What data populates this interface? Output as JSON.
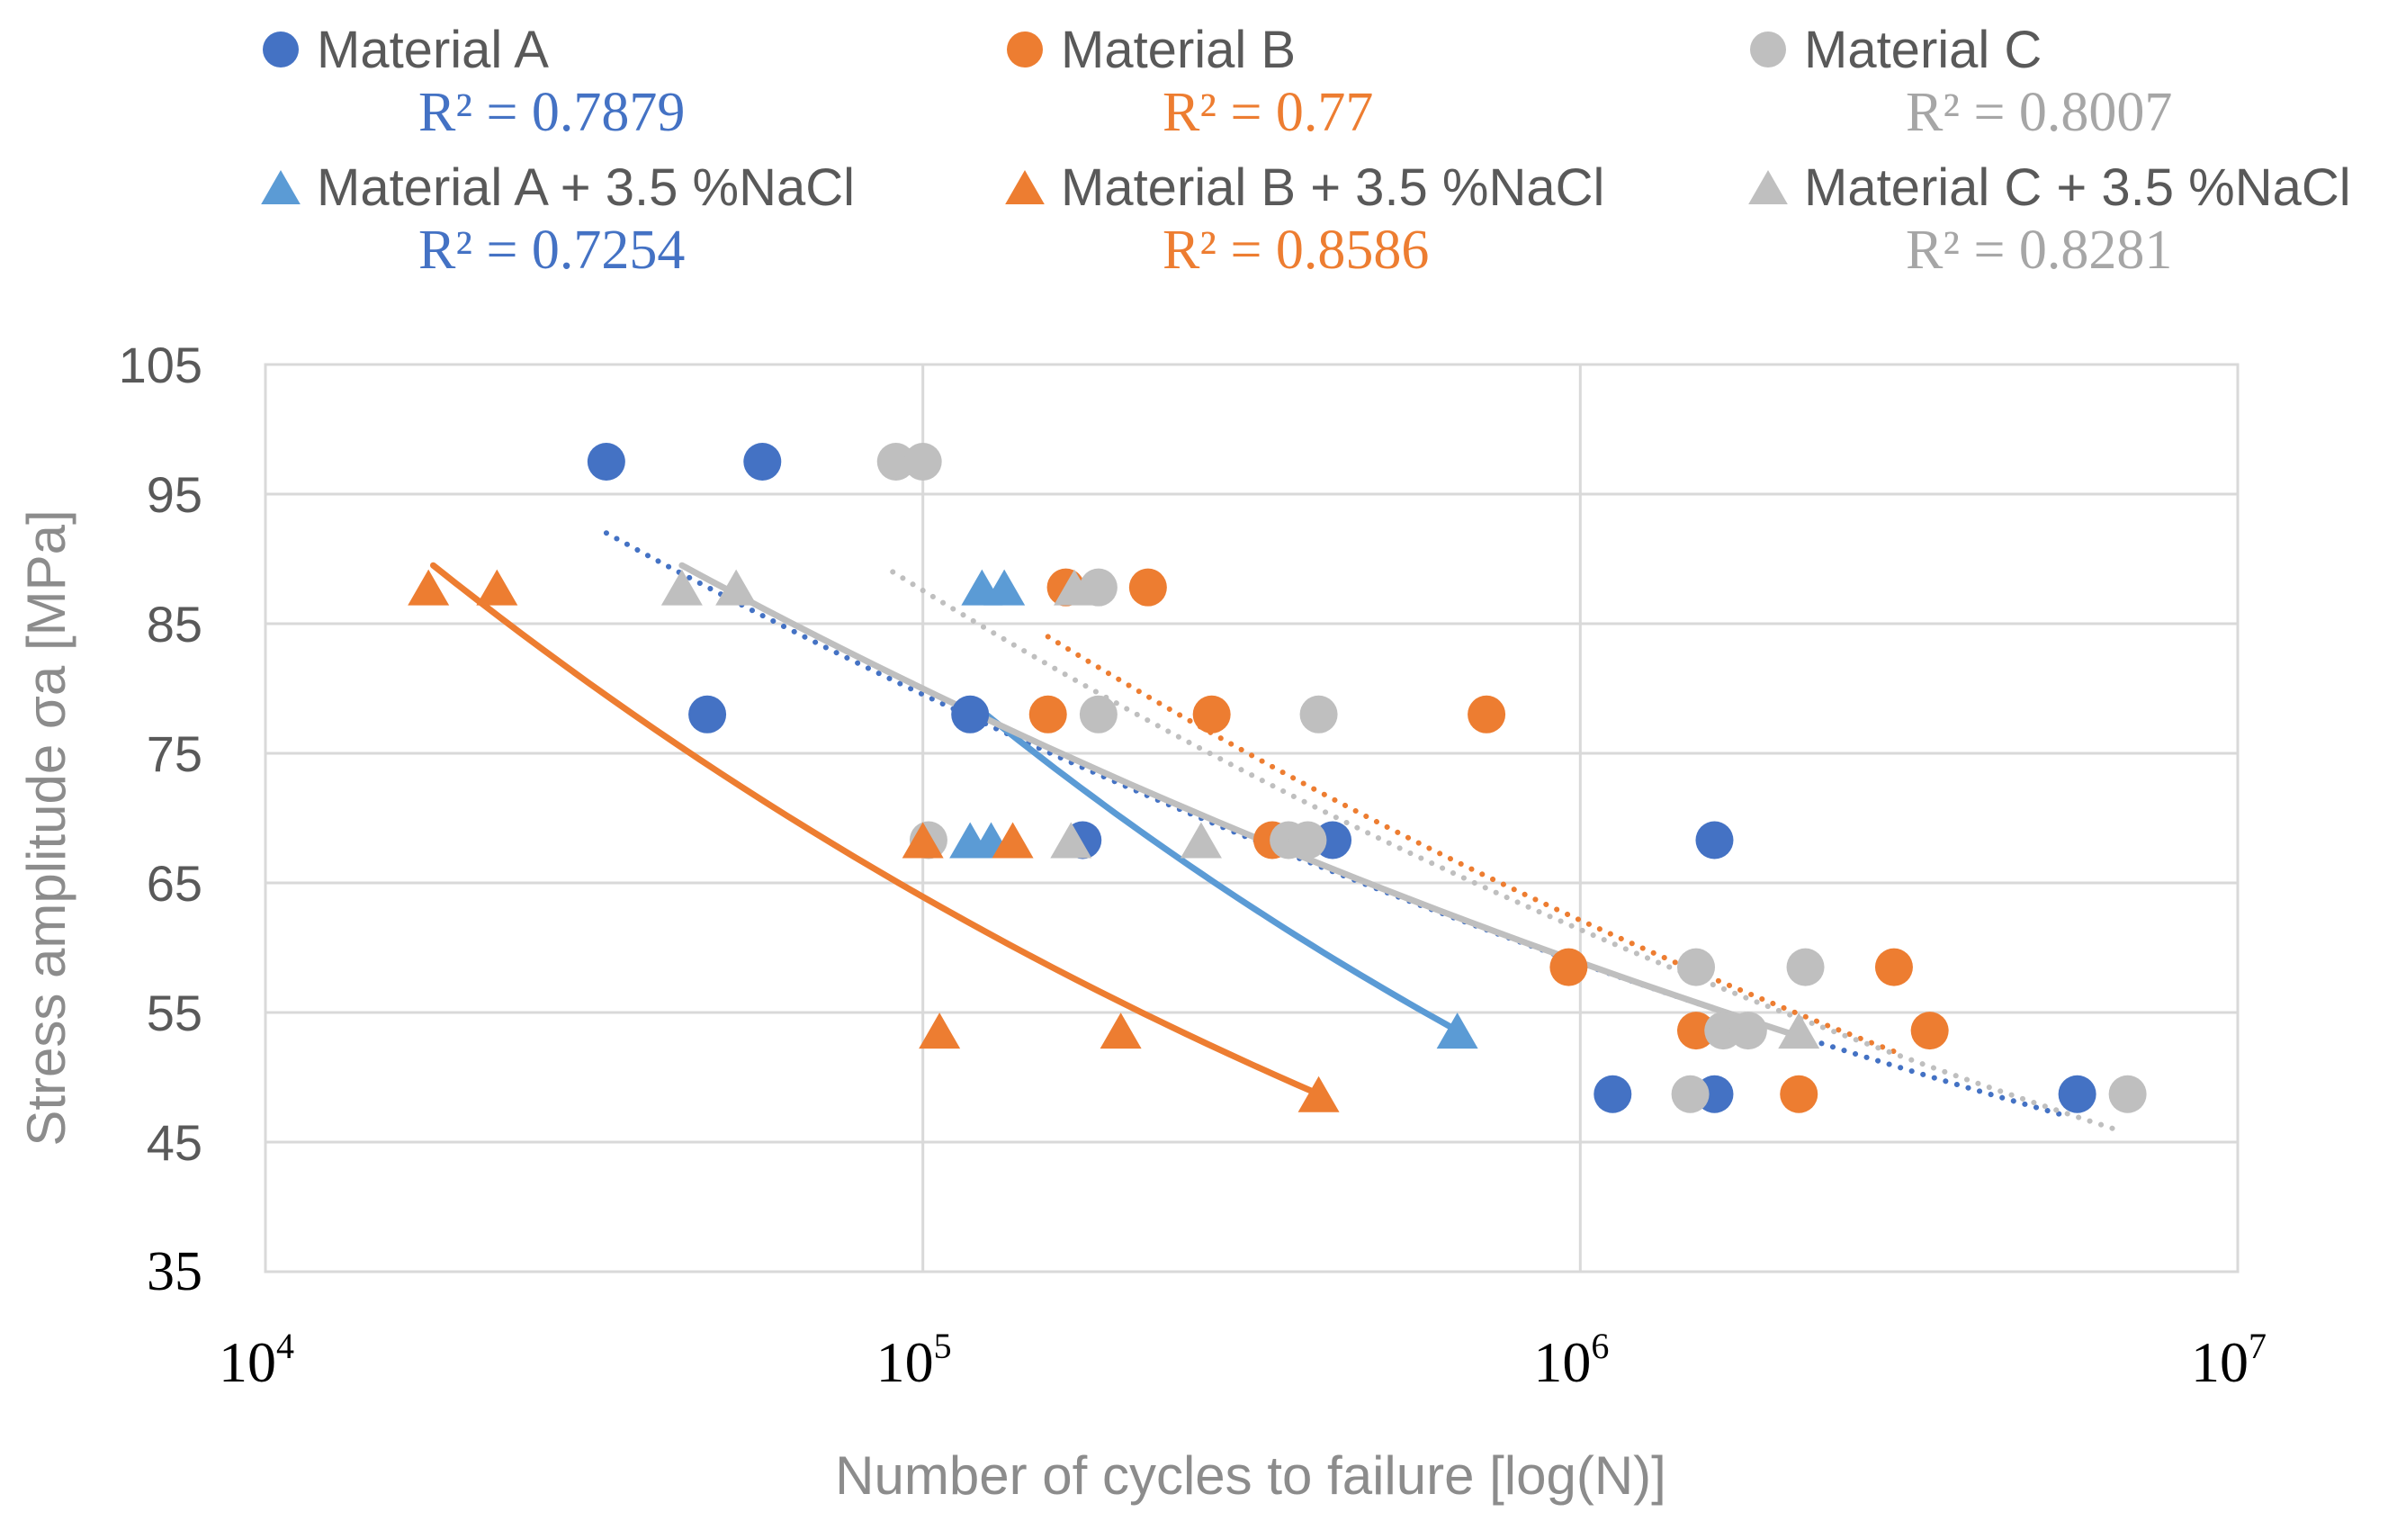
{
  "chart_data": {
    "type": "scatter",
    "title": "",
    "xlabel": "Number of cycles to failure  [log(N)]",
    "ylabel": "Stress amplitude  σa  [MPa]",
    "xscale": "log",
    "xlim": [
      10000,
      10000000
    ],
    "ylim": [
      35,
      105
    ],
    "xticks": [
      {
        "value": 10000,
        "base": "10",
        "exp": "4"
      },
      {
        "value": 100000,
        "base": "10",
        "exp": "5"
      },
      {
        "value": 1000000,
        "base": "10",
        "exp": "6"
      },
      {
        "value": 10000000,
        "base": "10",
        "exp": "7"
      }
    ],
    "yticks": [
      35,
      45,
      55,
      65,
      75,
      85,
      95,
      105
    ],
    "grid": true,
    "legend_position": "top",
    "series": [
      {
        "name": "Material A",
        "marker": "circle",
        "color": "#4472c4",
        "r2_label": "R² = 0.7879",
        "r2_color": "#4472c4",
        "trend_style": "dotted",
        "trend_color": "#4472c4",
        "trend_x": [
          33000,
          5500000
        ],
        "trend_y": [
          92,
          47
        ],
        "points": [
          [
            33000,
            97.5
          ],
          [
            57000,
            97.5
          ],
          [
            47000,
            78
          ],
          [
            118000,
            78
          ],
          [
            175000,
            68.3
          ],
          [
            420000,
            68.3
          ],
          [
            1600000,
            68.3
          ],
          [
            1120000,
            48.7
          ],
          [
            1600000,
            48.7
          ],
          [
            5700000,
            48.7
          ]
        ]
      },
      {
        "name": "Material B",
        "marker": "circle",
        "color": "#ed7d31",
        "r2_label": "R² = 0.77",
        "r2_color": "#ed7d31",
        "trend_style": "dotted",
        "trend_color": "#ed7d31",
        "trend_x": [
          155000,
          3000000
        ],
        "trend_y": [
          84,
          52
        ],
        "points": [
          [
            165000,
            87.8
          ],
          [
            220000,
            87.8
          ],
          [
            155000,
            78
          ],
          [
            275000,
            78
          ],
          [
            720000,
            78
          ],
          [
            340000,
            68.3
          ],
          [
            960000,
            58.5
          ],
          [
            3000000,
            58.5
          ],
          [
            1500000,
            53.6
          ],
          [
            3400000,
            53.6
          ],
          [
            2150000,
            48.7
          ]
        ]
      },
      {
        "name": "Material C",
        "marker": "circle",
        "color": "#bfbfbf",
        "r2_label": "R² = 0.8007",
        "r2_color": "#a6a6a6",
        "trend_style": "dotted",
        "trend_color": "#bfbfbf",
        "trend_x": [
          90000,
          6500000
        ],
        "trend_y": [
          89,
          46
        ],
        "points": [
          [
            91000,
            97.5
          ],
          [
            100000,
            97.5
          ],
          [
            185000,
            87.8
          ],
          [
            185000,
            78
          ],
          [
            400000,
            78
          ],
          [
            102000,
            68.3
          ],
          [
            360000,
            68.3
          ],
          [
            385000,
            68.3
          ],
          [
            1500000,
            58.5
          ],
          [
            2200000,
            58.5
          ],
          [
            1650000,
            53.6
          ],
          [
            1800000,
            53.6
          ],
          [
            1470000,
            48.7
          ],
          [
            6800000,
            48.7
          ]
        ]
      },
      {
        "name": "Material A + 3.5 %NaCl",
        "marker": "triangle",
        "color": "#5b9bd5",
        "r2_label": "R² = 0.7254",
        "r2_color": "#4472c4",
        "trend_style": "solid",
        "trend_color": "#5b9bd5",
        "trend_x": [
          118000,
          650000
        ],
        "trend_y": [
          79,
          53.6
        ],
        "points": [
          [
            123000,
            87.8
          ],
          [
            133000,
            87.8
          ],
          [
            118000,
            68.3
          ],
          [
            127000,
            68.3
          ],
          [
            650000,
            53.6
          ]
        ]
      },
      {
        "name": "Material B + 3.5 %NaCl",
        "marker": "triangle",
        "color": "#ed7d31",
        "r2_label": "R² = 0.8586",
        "r2_color": "#ed7d31",
        "trend_style": "solid",
        "trend_color": "#ed7d31",
        "trend_x": [
          18000,
          400000
        ],
        "trend_y": [
          89.5,
          48.7
        ],
        "points": [
          [
            17700,
            87.8
          ],
          [
            22500,
            87.8
          ],
          [
            100000,
            68.3
          ],
          [
            137000,
            68.3
          ],
          [
            106000,
            53.6
          ],
          [
            200000,
            53.6
          ],
          [
            400000,
            48.7
          ]
        ]
      },
      {
        "name": "Material C + 3.5 %NaCl",
        "marker": "triangle",
        "color": "#bfbfbf",
        "r2_label": "R² = 0.8281",
        "r2_color": "#a6a6a6",
        "trend_style": "solid",
        "trend_color": "#bfbfbf",
        "trend_x": [
          43000,
          2200000
        ],
        "trend_y": [
          89.5,
          53
        ],
        "points": [
          [
            43000,
            87.8
          ],
          [
            52000,
            87.8
          ],
          [
            170000,
            87.8
          ],
          [
            168000,
            68.3
          ],
          [
            265000,
            68.3
          ],
          [
            2150000,
            53.6
          ]
        ]
      }
    ]
  }
}
